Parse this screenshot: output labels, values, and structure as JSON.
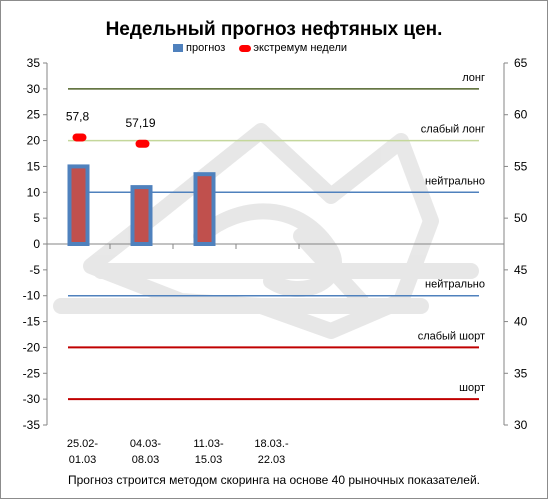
{
  "chart_data": {
    "type": "bar",
    "title": "Недельный прогноз нефтяных цен.",
    "footnote": "Прогноз строится методом скоринга на основе  40 рыночных показателей.",
    "legend": {
      "placement": "top",
      "entries": [
        {
          "name": "прогноз",
          "color": "#4f81bd",
          "marker": "bar"
        },
        {
          "name": "экстремум недели",
          "color": "#ff0000",
          "marker": "point"
        }
      ]
    },
    "categories": [
      [
        "25.02-",
        "01.03"
      ],
      [
        "04.03-",
        "08.03"
      ],
      [
        "11.03-",
        "15.03"
      ],
      [
        "18.03.-",
        "22.03"
      ]
    ],
    "series": [
      {
        "name": "прогноз",
        "type": "bar",
        "axis": "left",
        "values": [
          15,
          11,
          13.5,
          null
        ],
        "fill": "#c0504d",
        "border": "#4f81bd"
      },
      {
        "name": "экстремум недели",
        "type": "point",
        "axis": "right",
        "values": [
          57.8,
          57.19,
          null,
          null
        ],
        "labels": [
          "57,8",
          "57,19",
          "",
          ""
        ],
        "color": "#ff0000"
      }
    ],
    "y_left": {
      "min": -35,
      "max": 35,
      "step": 5
    },
    "y_right": {
      "min": 30,
      "max": 65,
      "step": 5
    },
    "reference_lines": [
      {
        "value": 30,
        "label": "лонг",
        "color": "#4f6228"
      },
      {
        "value": 20,
        "label": "слабый лонг",
        "color": "#c4d79b"
      },
      {
        "value": 10,
        "label": "нейтрально",
        "color": "#4f81bd"
      },
      {
        "value": -10,
        "label": "нейтрально",
        "color": "#4f81bd"
      },
      {
        "value": -20,
        "label": "слабый шорт",
        "color": "#c00000"
      },
      {
        "value": -30,
        "label": "шорт",
        "color": "#c00000"
      }
    ],
    "grid": false
  }
}
